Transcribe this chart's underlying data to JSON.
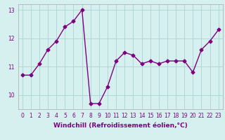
{
  "hours": [
    0,
    1,
    2,
    3,
    4,
    5,
    6,
    7,
    8,
    9,
    10,
    11,
    12,
    13,
    14,
    15,
    16,
    17,
    18,
    19,
    20,
    21,
    22,
    23
  ],
  "values": [
    10.7,
    10.7,
    11.1,
    11.6,
    11.9,
    12.4,
    12.6,
    13.0,
    9.7,
    9.7,
    10.3,
    11.2,
    11.5,
    11.4,
    11.1,
    11.2,
    11.1,
    11.2,
    11.2,
    11.2,
    10.8,
    11.6,
    11.9,
    12.3
  ],
  "line_color": "#800080",
  "marker": "D",
  "marker_size": 2.5,
  "linewidth": 1.0,
  "bg_color": "#d6f0ef",
  "grid_color": "#b0d8d8",
  "xlabel": "Windchill (Refroidissement éolien,°C)",
  "xlabel_fontsize": 6.5,
  "tick_fontsize": 5.5,
  "ylim": [
    9.5,
    13.2
  ],
  "yticks": [
    10,
    11,
    12,
    13
  ],
  "xtick_labels": [
    "0",
    "1",
    "2",
    "3",
    "4",
    "5",
    "6",
    "7",
    "8",
    "9",
    "10",
    "11",
    "12",
    "13",
    "14",
    "15",
    "16",
    "17",
    "18",
    "19",
    "20",
    "21",
    "22",
    "23"
  ]
}
